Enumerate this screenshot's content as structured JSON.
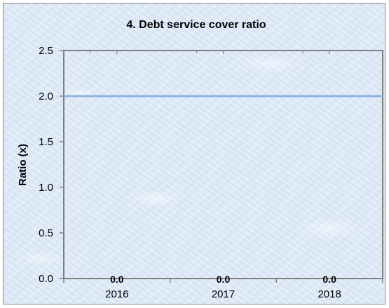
{
  "chart_data": {
    "type": "line",
    "title": "4. Debt service cover ratio",
    "xlabel": "",
    "ylabel": "Ratio (x)",
    "categories": [
      "2016",
      "2017",
      "2018"
    ],
    "ylim": [
      0,
      2.5
    ],
    "yticks": [
      "0.0",
      "0.5",
      "1.0",
      "1.5",
      "2.0",
      "2.5"
    ],
    "series": [
      {
        "values": [
          0.0,
          0.0,
          0.0
        ],
        "labels": [
          "0.0",
          "0.0",
          "0.0"
        ],
        "color": "#000000"
      }
    ],
    "reference_line": {
      "value": 2.0,
      "color": "#8db3e2"
    },
    "grid": false,
    "legend": "none"
  }
}
